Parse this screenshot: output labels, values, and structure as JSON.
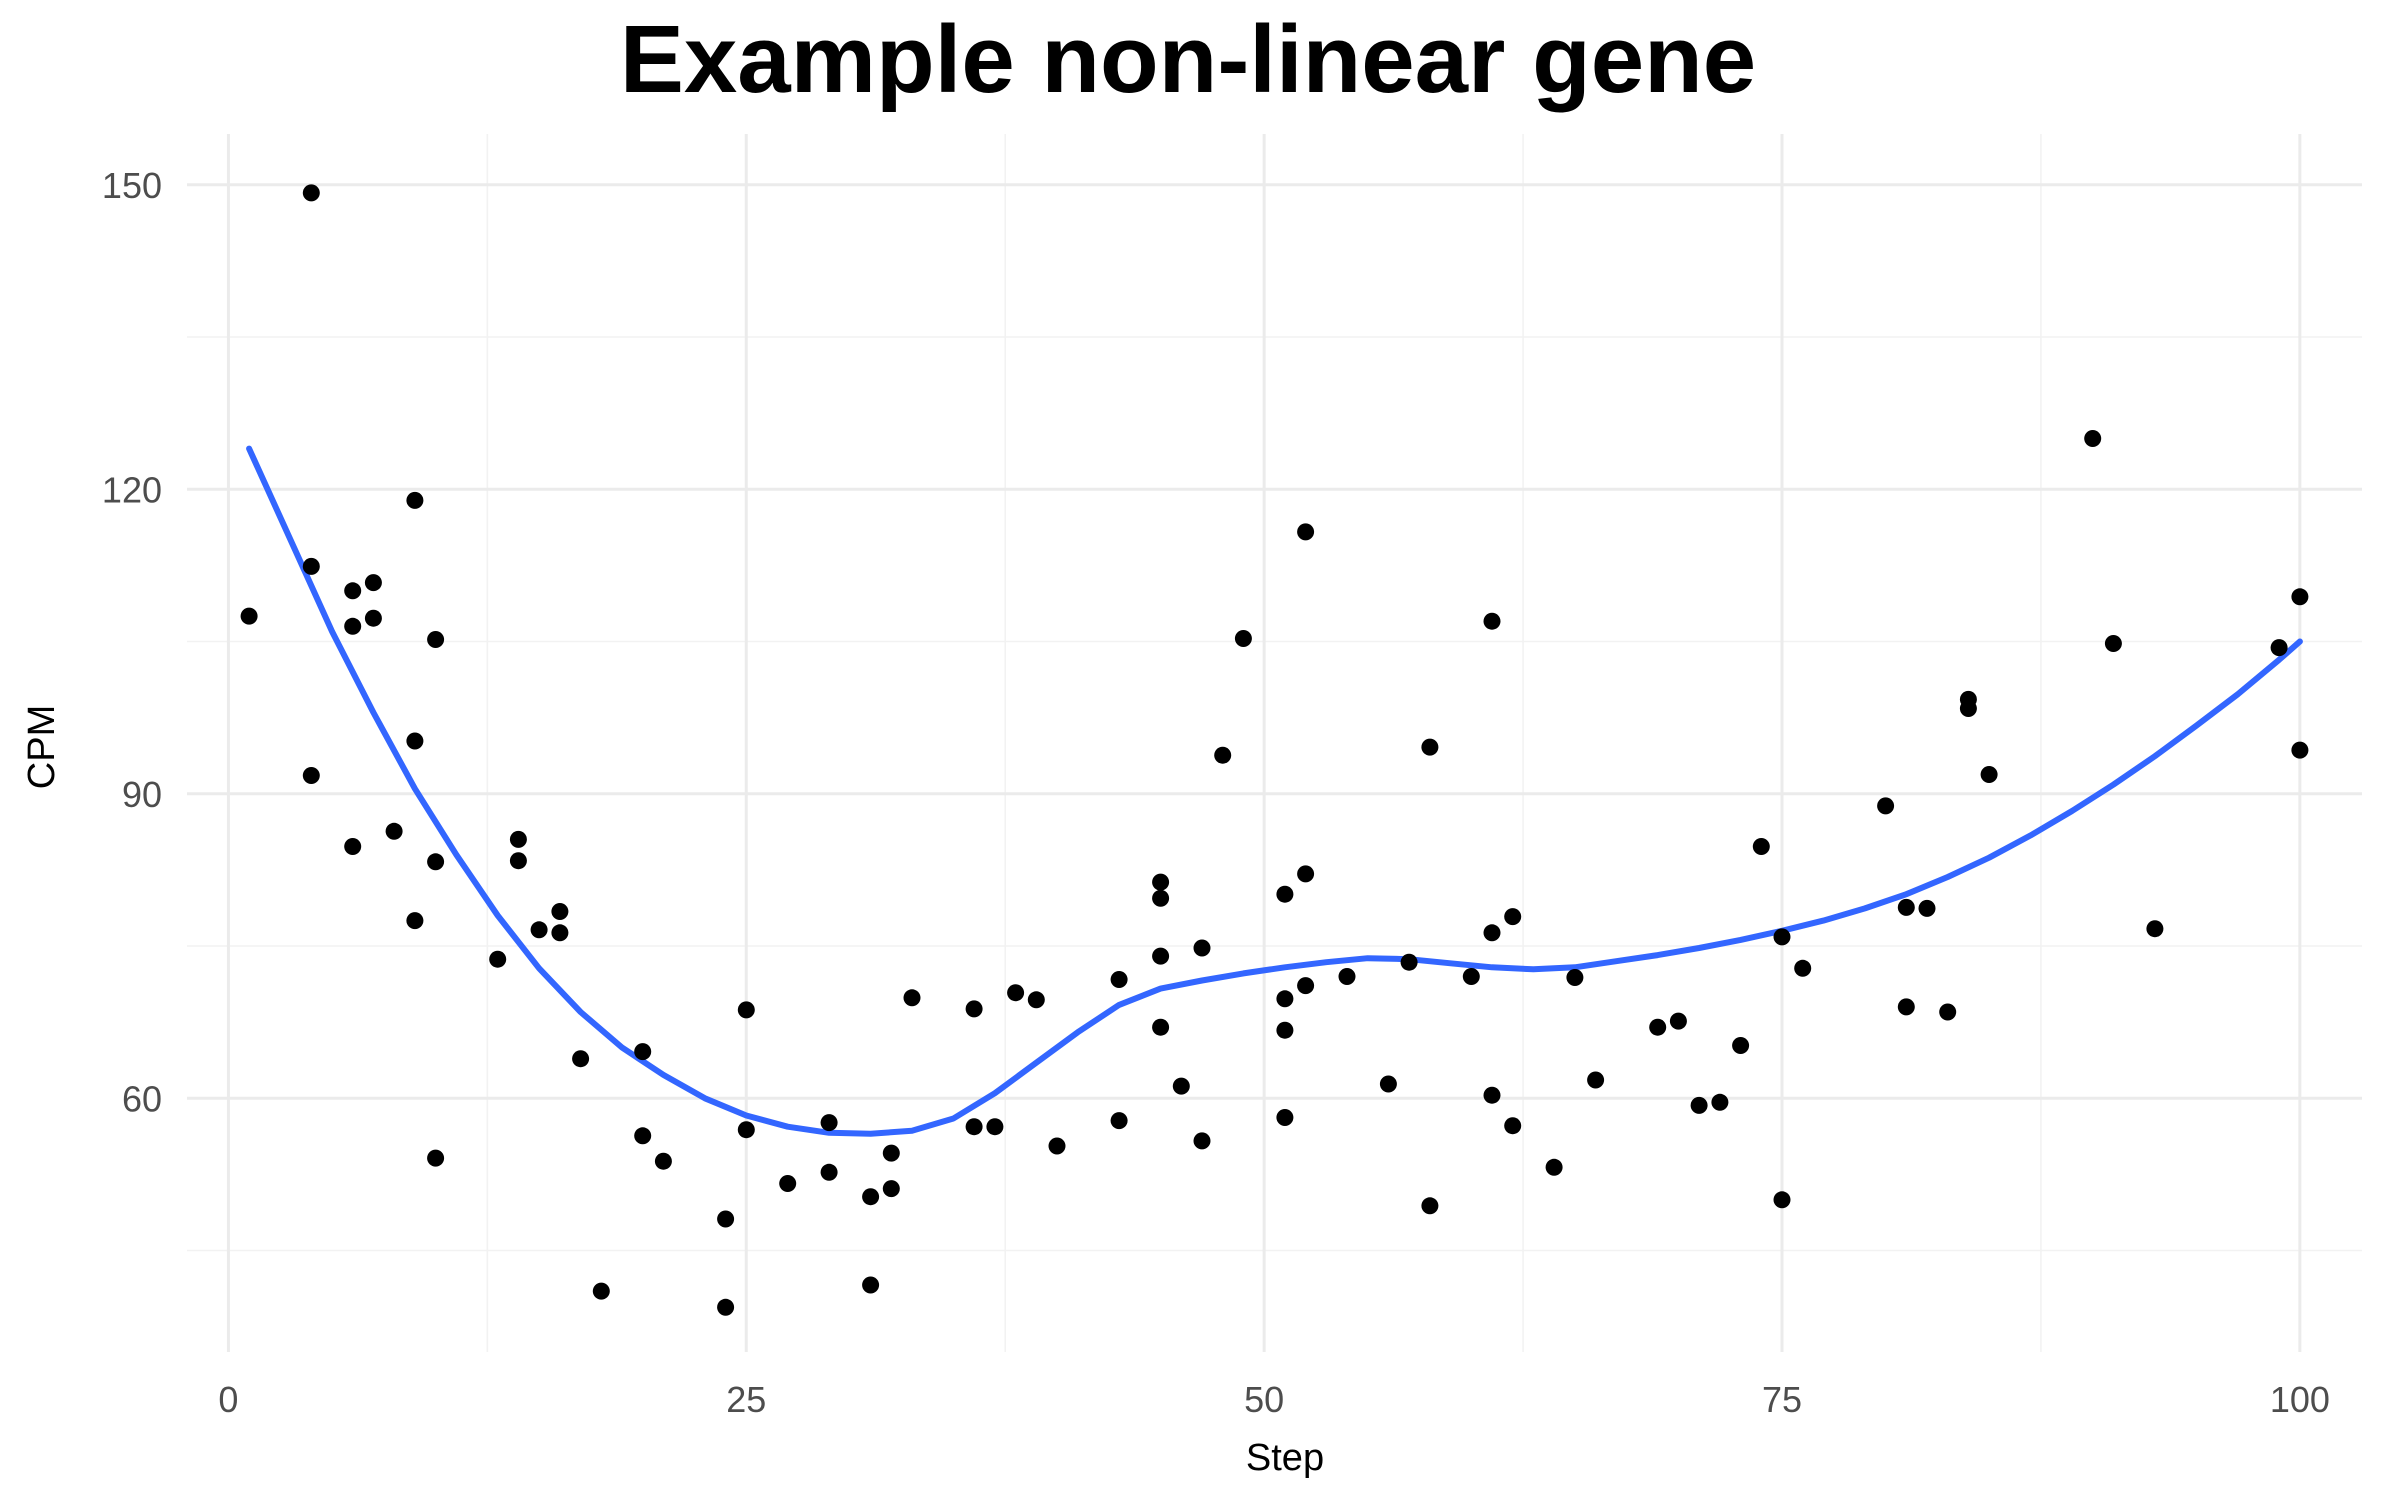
{
  "chart_data": {
    "type": "scatter",
    "title": "Example non-linear gene",
    "xlabel": "Step",
    "ylabel": "CPM",
    "xlim": [
      -2,
      103
    ],
    "ylim": [
      35,
      155
    ],
    "x_ticks": [
      0,
      25,
      50,
      75,
      100
    ],
    "y_ticks": [
      60,
      90,
      120,
      150
    ],
    "x_minor": [
      12.5,
      37.5,
      62.5,
      87.5
    ],
    "y_minor": [
      45,
      75,
      105,
      135
    ],
    "grid": true,
    "legend": "none",
    "colors": {
      "points": "#000000",
      "smooth": "#3366ff",
      "grid": "#ebebeb"
    },
    "points": [
      [
        1,
        107.5
      ],
      [
        4,
        149.2
      ],
      [
        4,
        112.4
      ],
      [
        4,
        91.8
      ],
      [
        6,
        110.0
      ],
      [
        6,
        106.5
      ],
      [
        6,
        84.8
      ],
      [
        7,
        110.8
      ],
      [
        7,
        107.3
      ],
      [
        8,
        86.3
      ],
      [
        9,
        118.9
      ],
      [
        9,
        95.2
      ],
      [
        9,
        77.5
      ],
      [
        10,
        105.2
      ],
      [
        10,
        83.3
      ],
      [
        10,
        54.1
      ],
      [
        13,
        73.7
      ],
      [
        14,
        85.5
      ],
      [
        14,
        83.4
      ],
      [
        15,
        76.6
      ],
      [
        16,
        78.4
      ],
      [
        16,
        76.3
      ],
      [
        17,
        63.9
      ],
      [
        18,
        41.0
      ],
      [
        20,
        64.6
      ],
      [
        20,
        56.3
      ],
      [
        21,
        53.8
      ],
      [
        24,
        48.1
      ],
      [
        24,
        39.4
      ],
      [
        25,
        68.7
      ],
      [
        25,
        56.9
      ],
      [
        27,
        51.6
      ],
      [
        29,
        57.6
      ],
      [
        29,
        52.7
      ],
      [
        31,
        50.3
      ],
      [
        31,
        41.6
      ],
      [
        32,
        54.6
      ],
      [
        32,
        51.1
      ],
      [
        33,
        69.9
      ],
      [
        36,
        68.8
      ],
      [
        36,
        57.2
      ],
      [
        37,
        57.2
      ],
      [
        38,
        70.4
      ],
      [
        39,
        69.7
      ],
      [
        40,
        55.3
      ],
      [
        43,
        71.7
      ],
      [
        43,
        57.8
      ],
      [
        45,
        81.3
      ],
      [
        45,
        79.7
      ],
      [
        45,
        74.0
      ],
      [
        45,
        67.0
      ],
      [
        46,
        61.2
      ],
      [
        47,
        74.8
      ],
      [
        47,
        55.8
      ],
      [
        48,
        93.8
      ],
      [
        49,
        105.3
      ],
      [
        51,
        80.1
      ],
      [
        51,
        69.8
      ],
      [
        51,
        66.7
      ],
      [
        51,
        58.1
      ],
      [
        52,
        115.8
      ],
      [
        52,
        82.1
      ],
      [
        52,
        71.1
      ],
      [
        54,
        72.0
      ],
      [
        56,
        61.4
      ],
      [
        57,
        73.4
      ],
      [
        58,
        94.6
      ],
      [
        58,
        49.4
      ],
      [
        60,
        72.0
      ],
      [
        61,
        107.0
      ],
      [
        61,
        76.3
      ],
      [
        61,
        60.3
      ],
      [
        62,
        77.9
      ],
      [
        62,
        57.3
      ],
      [
        64,
        53.2
      ],
      [
        65,
        71.9
      ],
      [
        66,
        61.8
      ],
      [
        69,
        67.0
      ],
      [
        70,
        67.6
      ],
      [
        71,
        59.3
      ],
      [
        72,
        59.6
      ],
      [
        73,
        65.2
      ],
      [
        74,
        84.8
      ],
      [
        75,
        75.9
      ],
      [
        75,
        50.0
      ],
      [
        76,
        72.8
      ],
      [
        80,
        88.8
      ],
      [
        81,
        78.8
      ],
      [
        81,
        69.0
      ],
      [
        82,
        78.7
      ],
      [
        83,
        68.5
      ],
      [
        84,
        99.3
      ],
      [
        84,
        98.4
      ],
      [
        85,
        91.9
      ],
      [
        90,
        125.0
      ],
      [
        91,
        104.8
      ],
      [
        93,
        76.7
      ],
      [
        99,
        104.4
      ],
      [
        100,
        109.4
      ],
      [
        100,
        94.3
      ]
    ],
    "smooth_curve": [
      [
        1,
        124.0
      ],
      [
        3,
        115.0
      ],
      [
        5,
        106.0
      ],
      [
        7,
        98.0
      ],
      [
        9,
        90.5
      ],
      [
        11,
        84.0
      ],
      [
        13,
        78.0
      ],
      [
        15,
        72.8
      ],
      [
        17,
        68.5
      ],
      [
        19,
        65.0
      ],
      [
        21,
        62.3
      ],
      [
        23,
        60.0
      ],
      [
        25,
        58.3
      ],
      [
        27,
        57.2
      ],
      [
        29,
        56.6
      ],
      [
        31,
        56.5
      ],
      [
        33,
        56.8
      ],
      [
        35,
        58.0
      ],
      [
        37,
        60.5
      ],
      [
        39,
        63.5
      ],
      [
        41,
        66.5
      ],
      [
        43,
        69.2
      ],
      [
        45,
        70.8
      ],
      [
        47,
        71.6
      ],
      [
        49,
        72.3
      ],
      [
        51,
        72.9
      ],
      [
        53,
        73.4
      ],
      [
        55,
        73.8
      ],
      [
        57,
        73.7
      ],
      [
        59,
        73.3
      ],
      [
        61,
        72.9
      ],
      [
        63,
        72.7
      ],
      [
        65,
        72.9
      ],
      [
        67,
        73.5
      ],
      [
        69,
        74.1
      ],
      [
        71,
        74.8
      ],
      [
        73,
        75.6
      ],
      [
        75,
        76.5
      ],
      [
        77,
        77.5
      ],
      [
        79,
        78.7
      ],
      [
        81,
        80.1
      ],
      [
        83,
        81.8
      ],
      [
        85,
        83.7
      ],
      [
        87,
        85.9
      ],
      [
        89,
        88.3
      ],
      [
        91,
        90.9
      ],
      [
        93,
        93.7
      ],
      [
        95,
        96.7
      ],
      [
        97,
        99.8
      ],
      [
        99,
        103.2
      ],
      [
        100,
        105.0
      ]
    ]
  }
}
